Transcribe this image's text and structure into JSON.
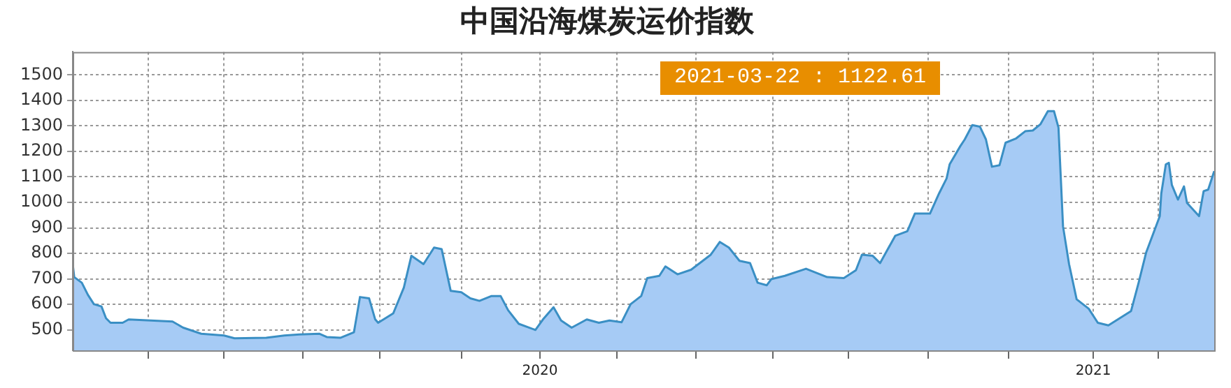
{
  "chart_data": {
    "type": "area",
    "title": "中国沿海煤炭运价指数",
    "x": [
      "2019-02-26",
      "2019-02-27",
      "2019-03-04",
      "2019-03-08",
      "2019-03-12",
      "2019-03-17",
      "2019-03-20",
      "2019-03-23",
      "2019-03-31",
      "2019-04-04",
      "2019-05-03",
      "2019-05-10",
      "2019-05-22",
      "2019-06-06",
      "2019-06-13",
      "2019-07-04",
      "2019-07-16",
      "2019-07-26",
      "2019-08-08",
      "2019-08-13",
      "2019-08-22",
      "2019-08-31",
      "2019-09-04",
      "2019-09-10",
      "2019-09-14",
      "2019-09-16",
      "2019-09-26",
      "2019-10-03",
      "2019-10-08",
      "2019-10-16",
      "2019-10-23",
      "2019-10-28",
      "2019-11-03",
      "2019-11-10",
      "2019-11-16",
      "2019-11-22",
      "2019-11-30",
      "2019-12-06",
      "2019-12-11",
      "2019-12-18",
      "2019-12-29",
      "2020-01-03",
      "2020-01-10",
      "2020-01-15",
      "2020-01-22",
      "2020-02-01",
      "2020-02-09",
      "2020-02-16",
      "2020-02-24",
      "2020-03-01",
      "2020-03-08",
      "2020-03-12",
      "2020-03-20",
      "2020-03-24",
      "2020-04-01",
      "2020-04-10",
      "2020-04-23",
      "2020-04-29",
      "2020-05-05",
      "2020-05-12",
      "2020-05-19",
      "2020-05-24",
      "2020-05-30",
      "2020-06-02",
      "2020-06-11",
      "2020-06-25",
      "2020-07-09",
      "2020-07-20",
      "2020-07-28",
      "2020-08-01",
      "2020-08-08",
      "2020-08-13",
      "2020-08-23",
      "2020-08-31",
      "2020-09-05",
      "2020-09-15",
      "2020-09-21",
      "2020-09-26",
      "2020-09-28",
      "2020-10-05",
      "2020-10-08",
      "2020-10-13",
      "2020-10-18",
      "2020-10-22",
      "2020-10-26",
      "2020-10-31",
      "2020-11-04",
      "2020-11-11",
      "2020-11-17",
      "2020-11-22",
      "2020-11-27",
      "2020-12-02",
      "2020-12-06",
      "2020-12-09",
      "2020-12-12",
      "2020-12-16",
      "2020-12-21",
      "2020-12-29",
      "2021-01-04",
      "2021-01-11",
      "2021-01-26",
      "2021-01-31",
      "2021-02-05",
      "2021-02-14",
      "2021-02-15",
      "2021-02-18",
      "2021-02-20",
      "2021-02-22",
      "2021-02-26",
      "2021-03-02",
      "2021-03-04",
      "2021-03-12",
      "2021-03-15",
      "2021-03-18",
      "2021-03-22"
    ],
    "series": [
      {
        "color": "#3a8fc4",
        "values": [
          758,
          707,
          685,
          638,
          601,
          592,
          546,
          528,
          528,
          541,
          533,
          509,
          485,
          478,
          467,
          469,
          478,
          482,
          485,
          472,
          469,
          491,
          629,
          624,
          542,
          528,
          565,
          666,
          791,
          758,
          823,
          817,
          653,
          648,
          624,
          614,
          633,
          633,
          577,
          524,
          500,
          541,
          589,
          537,
          509,
          541,
          528,
          537,
          530,
          601,
          633,
          703,
          712,
          749,
          718,
          736,
          795,
          845,
          823,
          771,
          762,
          685,
          675,
          699,
          712,
          740,
          707,
          703,
          734,
          795,
          791,
          762,
          869,
          887,
          956,
          956,
          1035,
          1094,
          1149,
          1220,
          1247,
          1303,
          1297,
          1247,
          1140,
          1146,
          1234,
          1251,
          1279,
          1282,
          1306,
          1358,
          1358,
          1293,
          906,
          758,
          620,
          583,
          528,
          518,
          574,
          685,
          804,
          946,
          1035,
          1149,
          1155,
          1068,
          1011,
          1063,
          998,
          946,
          1044,
          1050,
          1122.61
        ]
      }
    ],
    "xlim": [
      "2019-02-26",
      "2021-03-22"
    ],
    "xticks": [
      {
        "value": "2019-04-17",
        "label": null
      },
      {
        "value": "2019-06-06",
        "label": null
      },
      {
        "value": "2019-07-28",
        "label": null
      },
      {
        "value": "2019-09-17",
        "label": null
      },
      {
        "value": "2019-11-10",
        "label": null
      },
      {
        "value": "2020-01-01",
        "label": "2020"
      },
      {
        "value": "2020-02-21",
        "label": null
      },
      {
        "value": "2020-04-13",
        "label": null
      },
      {
        "value": "2020-06-03",
        "label": null
      },
      {
        "value": "2020-07-23",
        "label": null
      },
      {
        "value": "2020-09-14",
        "label": null
      },
      {
        "value": "2020-11-06",
        "label": null
      },
      {
        "value": "2021-01-01",
        "label": "2021"
      },
      {
        "value": "2021-02-13",
        "label": null
      }
    ],
    "ylim": [
      420,
      1590
    ],
    "yticks": [
      500,
      600,
      700,
      800,
      900,
      1000,
      1100,
      1200,
      1300,
      1400,
      1500
    ],
    "grid": true,
    "legend": false,
    "marker": "none",
    "line_style": "solid",
    "annotations": [
      "2021-03-22 : 1122.61"
    ]
  }
}
